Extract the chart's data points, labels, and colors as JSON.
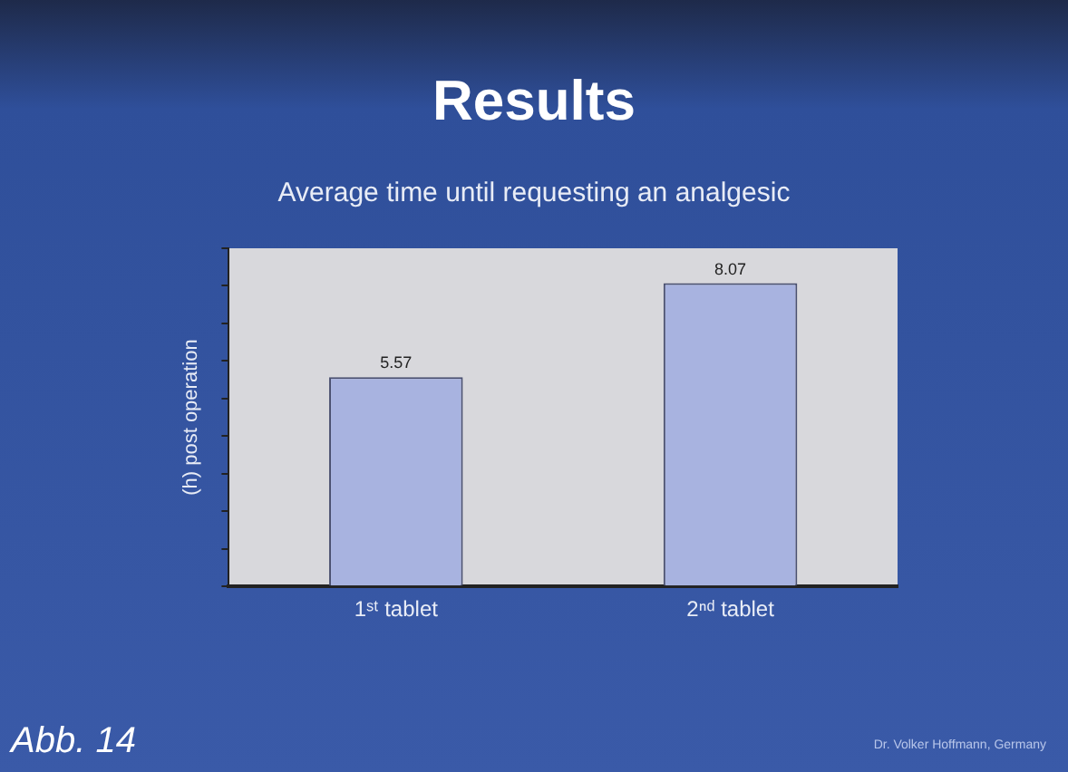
{
  "chart_data": {
    "type": "bar",
    "title": "Results",
    "subtitle": "Average time until requesting an analgesic",
    "ylabel": "(h) post operation",
    "categories": [
      "1ˢᵗ tablet",
      "2ⁿᵈ tablet"
    ],
    "values": [
      5.57,
      8.07
    ],
    "color": "#a8b3e0",
    "data_labels": true,
    "ylim": [
      0,
      9
    ],
    "yticks": [
      {
        "value": 0,
        "label": null
      },
      {
        "value": 1,
        "label": null
      },
      {
        "value": 2,
        "label": null
      },
      {
        "value": 3,
        "label": null
      },
      {
        "value": 4,
        "label": null
      },
      {
        "value": 5,
        "label": null
      },
      {
        "value": 6,
        "label": null
      },
      {
        "value": 7,
        "label": null
      },
      {
        "value": 8,
        "label": null
      },
      {
        "value": 9,
        "label": null
      }
    ],
    "tick_labels": "x",
    "grid": false,
    "legend": false,
    "annotations": [
      "Abb. 14",
      "Dr. Volker Hoffmann, Germany"
    ]
  }
}
